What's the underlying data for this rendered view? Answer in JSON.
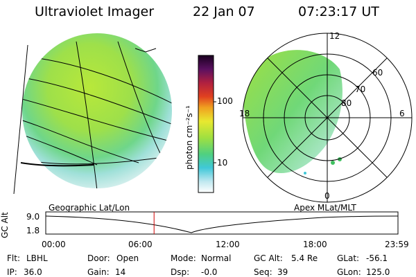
{
  "header": {
    "instrument": "Ultraviolet Imager",
    "date": "22 Jan 07",
    "time": "07:23:17 UT"
  },
  "colorbar": {
    "label": "photon cm⁻²s⁻¹",
    "ticks": [
      "100",
      "10"
    ]
  },
  "polar_plot": {
    "labels": {
      "mlt_top": "12",
      "mlt_left": "18",
      "mlt_right": "6",
      "mlt_bottom": "0",
      "lat_60": "60",
      "lat_70": "70",
      "lat_80": "80"
    }
  },
  "timeline": {
    "left_label": "Geographic Lat/Lon",
    "right_label": "Apex MLat/MLT",
    "axis_label": "GC Alt",
    "y_ticks": [
      "9.0",
      "1.8"
    ],
    "x_ticks": [
      "00:00",
      "06:00",
      "12:00",
      "18:00",
      "23:59"
    ],
    "marker_time_hours": 7.38
  },
  "status": {
    "flt_label": "Flt:",
    "flt_value": "LBHL",
    "ip_label": "IP:",
    "ip_value": "36.0",
    "door_label": "Door:",
    "door_value": "Open",
    "gain_label": "Gain:",
    "gain_value": "14",
    "mode_label": "Mode:",
    "mode_value": "Normal",
    "dsp_label": "Dsp:",
    "dsp_value": "-0.0",
    "gcalt_label": "GC Alt:",
    "gcalt_value": "5.4 Re",
    "seq_label": "Seq:",
    "seq_value": "39",
    "glat_label": "GLat:",
    "glat_value": "-56.1",
    "glon_label": "GLon:",
    "glon_value": "125.0"
  }
}
